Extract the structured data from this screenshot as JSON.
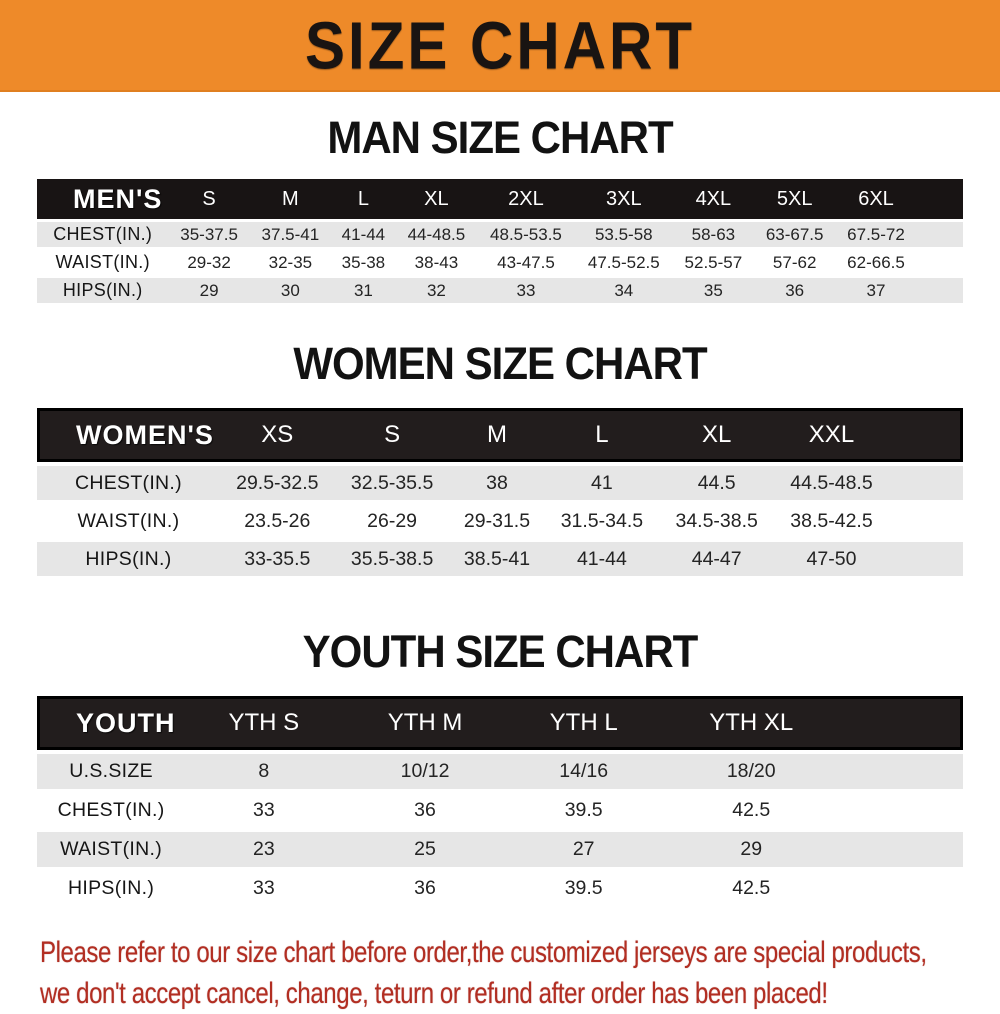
{
  "banner": {
    "title": "SIZE CHART",
    "bg_color": "#ee8a29",
    "text_color": "#191412"
  },
  "chart_data": [
    {
      "type": "table",
      "title": "MAN SIZE CHART",
      "header_label": "MEN'S",
      "columns": [
        "S",
        "M",
        "L",
        "XL",
        "2XL",
        "3XL",
        "4XL",
        "5XL",
        "6XL"
      ],
      "rows": [
        {
          "label": "CHEST(IN.)",
          "values": [
            "35-37.5",
            "37.5-41",
            "41-44",
            "44-48.5",
            "48.5-53.5",
            "53.5-58",
            "58-63",
            "63-67.5",
            "67.5-72"
          ]
        },
        {
          "label": "WAIST(IN.)",
          "values": [
            "29-32",
            "32-35",
            "35-38",
            "38-43",
            "43-47.5",
            "47.5-52.5",
            "52.5-57",
            "57-62",
            "62-66.5"
          ]
        },
        {
          "label": "HIPS(IN.)",
          "values": [
            "29",
            "30",
            "31",
            "32",
            "33",
            "34",
            "35",
            "36",
            "37"
          ]
        }
      ]
    },
    {
      "type": "table",
      "title": "WOMEN SIZE CHART",
      "header_label": "WOMEN'S",
      "columns": [
        "XS",
        "S",
        "M",
        "L",
        "XL",
        "XXL"
      ],
      "rows": [
        {
          "label": "CHEST(IN.)",
          "values": [
            "29.5-32.5",
            "32.5-35.5",
            "38",
            "41",
            "44.5",
            "44.5-48.5"
          ]
        },
        {
          "label": "WAIST(IN.)",
          "values": [
            "23.5-26",
            "26-29",
            "29-31.5",
            "31.5-34.5",
            "34.5-38.5",
            "38.5-42.5"
          ]
        },
        {
          "label": "HIPS(IN.)",
          "values": [
            "33-35.5",
            "35.5-38.5",
            "38.5-41",
            "41-44",
            "44-47",
            "47-50"
          ]
        }
      ]
    },
    {
      "type": "table",
      "title": "YOUTH SIZE CHART",
      "header_label": "YOUTH",
      "columns": [
        "YTH S",
        "YTH M",
        "YTH L",
        "YTH XL"
      ],
      "rows": [
        {
          "label": "U.S.SIZE",
          "values": [
            "8",
            "10/12",
            "14/16",
            "18/20"
          ]
        },
        {
          "label": "CHEST(IN.)",
          "values": [
            "33",
            "36",
            "39.5",
            "42.5"
          ]
        },
        {
          "label": "WAIST(IN.)",
          "values": [
            "23",
            "25",
            "27",
            "29"
          ]
        },
        {
          "label": "HIPS(IN.)",
          "values": [
            "33",
            "36",
            "39.5",
            "42.5"
          ]
        }
      ]
    }
  ],
  "table_colors": {
    "header_bg": "#181414",
    "shaded_row_bg": "#e6e6e6",
    "plain_row_bg": "#ffffff"
  },
  "disclaimer": {
    "line1": "Please refer to our size chart before order,the customized jerseys are special products,",
    "line2": "we don't accept cancel, change, teturn or refund after order has been placed!",
    "color": "#b22e22"
  }
}
